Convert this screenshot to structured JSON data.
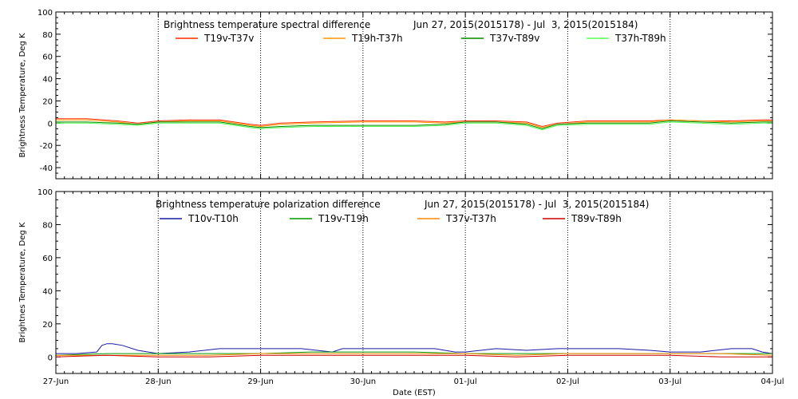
{
  "chart_data": [
    {
      "type": "line",
      "title": "Brightness temperature spectral difference",
      "date_range": "Jun 27, 2015(2015178) - Jul  3, 2015(2015184)",
      "ylabel": "Brightness Temperature, Deg K",
      "ylim": [
        -50,
        100
      ],
      "yticks": [
        -40,
        -20,
        0,
        20,
        40,
        60,
        80,
        100
      ],
      "xlim": [
        0,
        7
      ],
      "x_unit": "days since Jun 27, 2015",
      "series": [
        {
          "name": "T19v-T37v",
          "color": "#ff2a00",
          "x": [
            0,
            0.3,
            0.6,
            0.8,
            1.0,
            1.3,
            1.6,
            1.9,
            2.0,
            2.2,
            2.5,
            3.0,
            3.5,
            3.8,
            4.0,
            4.3,
            4.6,
            4.75,
            4.9,
            5.2,
            5.5,
            5.8,
            6.0,
            6.3,
            6.6,
            6.9,
            7.0
          ],
          "values": [
            4,
            4,
            2,
            0,
            2,
            3,
            3,
            -1,
            -2,
            0,
            1,
            2,
            2,
            1,
            2,
            2,
            1,
            -3,
            0,
            2,
            2,
            2,
            3,
            2,
            2,
            3,
            3
          ]
        },
        {
          "name": "T19h-T37h",
          "color": "#ff9900",
          "x": [
            0,
            0.3,
            0.6,
            0.8,
            1.0,
            1.3,
            1.6,
            1.9,
            2.0,
            2.2,
            2.5,
            3.0,
            3.5,
            3.8,
            4.0,
            4.3,
            4.6,
            4.75,
            4.9,
            5.2,
            5.5,
            5.8,
            6.0,
            6.3,
            6.6,
            6.9,
            7.0
          ],
          "values": [
            3,
            3,
            1,
            -1,
            1,
            2,
            2,
            -2,
            -3,
            -1,
            0,
            1,
            1,
            0,
            1,
            1,
            0,
            -4,
            -1,
            1,
            1,
            1,
            3,
            2,
            1,
            2,
            2
          ]
        },
        {
          "name": "T37v-T89v",
          "color": "#008800",
          "x": [
            0,
            0.3,
            0.6,
            0.8,
            1.0,
            1.3,
            1.6,
            1.9,
            2.0,
            2.2,
            2.5,
            3.0,
            3.5,
            3.8,
            4.0,
            4.3,
            4.6,
            4.75,
            4.9,
            5.2,
            5.5,
            5.8,
            6.0,
            6.3,
            6.6,
            6.9,
            7.0
          ],
          "values": [
            1,
            1,
            0,
            -1,
            1,
            1,
            1,
            -3,
            -4,
            -3,
            -2,
            -2,
            -2,
            -1,
            1,
            1,
            -1,
            -5,
            -1,
            0,
            0,
            0,
            2,
            1,
            0,
            1,
            1
          ]
        },
        {
          "name": "T37h-T89h",
          "color": "#55ff55",
          "x": [
            0,
            0.3,
            0.6,
            0.8,
            1.0,
            1.3,
            1.6,
            1.9,
            2.0,
            2.2,
            2.5,
            3.0,
            3.5,
            3.8,
            4.0,
            4.3,
            4.6,
            4.75,
            4.9,
            5.2,
            5.5,
            5.8,
            6.0,
            6.3,
            6.6,
            6.9,
            7.0
          ],
          "values": [
            0,
            0,
            -1,
            -2,
            0,
            0,
            0,
            -4,
            -5,
            -4,
            -3,
            -3,
            -3,
            -2,
            0,
            0,
            -2,
            -6,
            -2,
            -1,
            -1,
            -1,
            1,
            0,
            -1,
            0,
            0
          ]
        }
      ]
    },
    {
      "type": "line",
      "title": "Brightness temperature polarization difference",
      "date_range": "Jun 27, 2015(2015178) - Jul  3, 2015(2015184)",
      "ylabel": "Brightnes Temperature, Deg K",
      "ylim": [
        -10,
        100
      ],
      "yticks": [
        0,
        20,
        40,
        60,
        80,
        100
      ],
      "xlim": [
        0,
        7
      ],
      "xlabel": "Date (EST)",
      "x_tick_labels": [
        "27-Jun",
        "28-Jun",
        "29-Jun",
        "30-Jun",
        "01-Jul",
        "02-Jul",
        "03-Jul",
        "04-Jul"
      ],
      "series": [
        {
          "name": "T10v-T10h",
          "color": "#1a1aa6",
          "x": [
            0,
            0.2,
            0.4,
            0.45,
            0.5,
            0.55,
            0.65,
            0.8,
            1.0,
            1.3,
            1.6,
            2.0,
            2.4,
            2.7,
            2.8,
            3.0,
            3.5,
            3.7,
            3.9,
            4.0,
            4.3,
            4.6,
            4.9,
            5.2,
            5.5,
            5.8,
            6.0,
            6.3,
            6.6,
            6.8,
            6.9,
            7.0
          ],
          "values": [
            2,
            2,
            3,
            7,
            8,
            8,
            7,
            4,
            2,
            3,
            5,
            5,
            5,
            3,
            5,
            5,
            5,
            5,
            3,
            3,
            5,
            4,
            5,
            5,
            5,
            4,
            3,
            3,
            5,
            5,
            3,
            2
          ]
        },
        {
          "name": "T19v-T19h",
          "color": "#009900",
          "x": [
            0,
            0.5,
            1.0,
            1.5,
            2.0,
            2.5,
            3.0,
            3.5,
            4.0,
            4.5,
            5.0,
            5.5,
            6.0,
            6.5,
            7.0
          ],
          "values": [
            1,
            2,
            2,
            2,
            2,
            3,
            3,
            3,
            2,
            2,
            2,
            2,
            2,
            2,
            2
          ]
        },
        {
          "name": "T37v-T37h",
          "color": "#ff8800",
          "x": [
            0,
            0.5,
            1.0,
            1.5,
            2.0,
            2.5,
            3.0,
            3.5,
            4.0,
            4.5,
            5.0,
            5.5,
            6.0,
            6.5,
            7.0
          ],
          "values": [
            1,
            1,
            1,
            1,
            2,
            2,
            2,
            2,
            2,
            1,
            2,
            2,
            2,
            2,
            1
          ]
        },
        {
          "name": "T89v-T89h",
          "color": "#cc0000",
          "x": [
            0,
            0.5,
            1.0,
            1.5,
            2.0,
            2.5,
            3.0,
            3.5,
            4.0,
            4.5,
            5.0,
            5.5,
            6.0,
            6.5,
            7.0
          ],
          "values": [
            0,
            1,
            0,
            0,
            1,
            1,
            1,
            1,
            1,
            0,
            1,
            1,
            1,
            0,
            0
          ]
        }
      ]
    }
  ]
}
